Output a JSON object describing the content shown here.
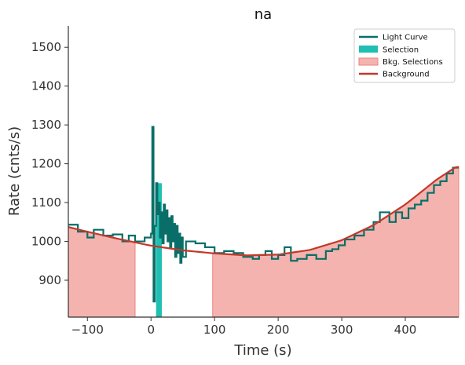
{
  "chart_data": {
    "type": "line",
    "title": "na",
    "xlabel": "Time (s)",
    "ylabel": "Rate (cnts/s)",
    "xlim": [
      -130,
      484
    ],
    "ylim": [
      805,
      1555
    ],
    "xticks": [
      -100,
      0,
      100,
      200,
      300,
      400
    ],
    "yticks": [
      900,
      1000,
      1100,
      1200,
      1300,
      1400,
      1500
    ],
    "grid": false,
    "legend_position": "top-right",
    "legend": [
      "Light Curve",
      "Selection",
      "Bkg. Selections",
      "Background"
    ],
    "colors": {
      "light_curve": "#0a6e68",
      "selection": "#1fbfb3",
      "bkg_fill": "#f4b3ae",
      "bkg_edge": "#e8847d",
      "background": "#c1392b"
    },
    "selection_range": [
      8,
      17
    ],
    "bkg_selections": [
      [
        -130,
        -25
      ],
      [
        97,
        484
      ]
    ],
    "background_model": {
      "x": [
        -130,
        -100,
        -50,
        0,
        50,
        100,
        150,
        200,
        250,
        300,
        350,
        400,
        450,
        480
      ],
      "y": [
        1037,
        1025,
        1006,
        989,
        977,
        969,
        964,
        966,
        978,
        1003,
        1042,
        1095,
        1160,
        1192
      ]
    },
    "light_curve": {
      "x": [
        -130,
        -115,
        -100,
        -90,
        -75,
        -60,
        -45,
        -35,
        -25,
        -10,
        0,
        2,
        4,
        6,
        8,
        10,
        12,
        14,
        16,
        18,
        20,
        22,
        24,
        26,
        28,
        30,
        32,
        34,
        36,
        38,
        40,
        42,
        44,
        46,
        48,
        50,
        55,
        70,
        85,
        100,
        115,
        130,
        145,
        160,
        170,
        180,
        190,
        200,
        210,
        220,
        230,
        245,
        260,
        275,
        285,
        295,
        305,
        320,
        335,
        350,
        360,
        375,
        385,
        395,
        405,
        415,
        425,
        435,
        445,
        455,
        465,
        475
      ],
      "y": [
        1043,
        1025,
        1010,
        1030,
        1015,
        1018,
        1000,
        1015,
        1000,
        1010,
        1020,
        1295,
        845,
        1040,
        1150,
        1070,
        1100,
        1010,
        1075,
        995,
        1095,
        1020,
        1080,
        1000,
        1060,
        985,
        1065,
        1000,
        1045,
        960,
        1040,
        970,
        1020,
        945,
        1010,
        960,
        1000,
        995,
        985,
        970,
        975,
        970,
        960,
        955,
        965,
        975,
        955,
        965,
        985,
        950,
        955,
        965,
        955,
        975,
        980,
        990,
        1005,
        1015,
        1030,
        1050,
        1075,
        1050,
        1075,
        1060,
        1085,
        1095,
        1105,
        1125,
        1145,
        1155,
        1175,
        1190
      ],
      "x_end": 484
    }
  }
}
